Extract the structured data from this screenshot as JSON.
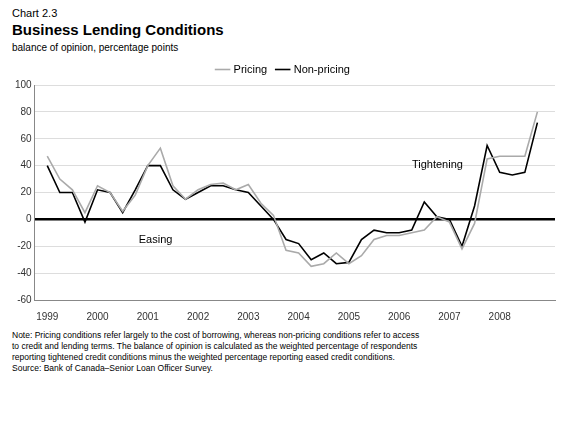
{
  "chart_data": {
    "type": "line",
    "title": "Chart 2.3",
    "subtitle": "Business Lending Conditions",
    "y_label": "balance of opinion, percentage points",
    "annotations": [
      "Tightening",
      "Easing"
    ],
    "note": "Note: Pricing conditions refer largely to the cost of borrowing, whereas non-pricing conditions refer to access\nto credit and lending terms. The balance of opinion is calculated as the weighted percentage of respondents\nreporting tightened credit conditions minus the weighted percentage reporting eased credit conditions.",
    "source": "Source: Bank of Canada–Senior Loan Officer Survey.",
    "x": [
      1999.0,
      1999.25,
      1999.5,
      1999.75,
      2000.0,
      2000.25,
      2000.5,
      2000.75,
      2001.0,
      2001.25,
      2001.5,
      2001.75,
      2002.0,
      2002.25,
      2002.5,
      2002.75,
      2003.0,
      2003.25,
      2003.5,
      2003.75,
      2004.0,
      2004.25,
      2004.5,
      2004.75,
      2005.0,
      2005.25,
      2005.5,
      2005.75,
      2006.0,
      2006.25,
      2006.5,
      2006.75,
      2007.0,
      2007.25,
      2007.5,
      2007.75,
      2008.0,
      2008.25,
      2008.5,
      2008.75
    ],
    "series": [
      {
        "name": "Pricing",
        "color": "#aaaaaa",
        "values": [
          47,
          30,
          22,
          5,
          25,
          20,
          6,
          18,
          40,
          53,
          25,
          15,
          22,
          26,
          27,
          22,
          26,
          12,
          3,
          -23,
          -25,
          -35,
          -33,
          -25,
          -33,
          -27,
          -15,
          -12,
          -12,
          -10,
          -8,
          2,
          -2,
          -22,
          -3,
          45,
          47,
          47,
          47,
          80
        ]
      },
      {
        "name": "Non-pricing",
        "color": "#000000",
        "values": [
          40,
          20,
          20,
          -2,
          22,
          20,
          5,
          22,
          40,
          40,
          22,
          15,
          20,
          25,
          25,
          22,
          20,
          10,
          0,
          -15,
          -18,
          -30,
          -25,
          -33,
          -32,
          -15,
          -8,
          -10,
          -10,
          -8,
          13,
          2,
          0,
          -20,
          10,
          55,
          35,
          33,
          35,
          72
        ]
      }
    ],
    "xlim": [
      1998.75,
      2009.1
    ],
    "xticks": [
      1999,
      2000,
      2001,
      2002,
      2003,
      2004,
      2005,
      2006,
      2007,
      2008
    ],
    "ylim": [
      -60,
      100
    ],
    "yticks": [
      -60,
      -40,
      -20,
      0,
      20,
      40,
      60,
      80,
      100
    ],
    "grid": "y",
    "legend": "top"
  }
}
